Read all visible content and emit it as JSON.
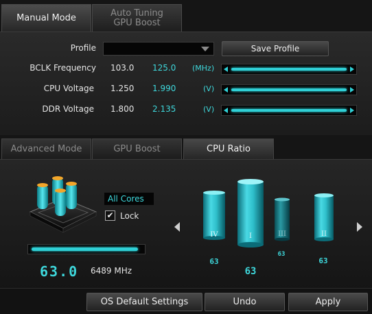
{
  "top_tabs": [
    {
      "label": "Manual Mode",
      "active": true
    },
    {
      "label_line1": "Auto Tuning",
      "label_line2": "GPU Boost",
      "active": false
    }
  ],
  "profile": {
    "label": "Profile",
    "value": "",
    "save_label": "Save Profile"
  },
  "params": [
    {
      "label": "BCLK Frequency",
      "default": "103.0",
      "current": "125.0",
      "unit": "(MHz)"
    },
    {
      "label": "CPU Voltage",
      "default": "1.250",
      "current": "1.990",
      "unit": "(V)"
    },
    {
      "label": "DDR Voltage",
      "default": "1.800",
      "current": "2.135",
      "unit": "(V)"
    }
  ],
  "sub_tabs": [
    {
      "label": "Advanced Mode",
      "active": false
    },
    {
      "label": "GPU Boost",
      "active": false
    },
    {
      "label": "CPU Ratio",
      "active": true
    }
  ],
  "cpu_ratio": {
    "cores_select": "All Cores",
    "lock_label": "Lock",
    "lock_checked": true,
    "ratio_display": "63.0",
    "frequency": "6489 MHz",
    "ratio_fill_fraction": 0.97
  },
  "cores": [
    {
      "numeral": "IV",
      "value": "63"
    },
    {
      "numeral": "I",
      "value": "63"
    },
    {
      "numeral": "III",
      "value": "63"
    },
    {
      "numeral": "II",
      "value": "63"
    }
  ],
  "footer": {
    "default_label": "OS Default Settings",
    "undo_label": "Undo",
    "apply_label": "Apply"
  },
  "colors": {
    "accent": "#3ed8dc",
    "background": "#151515"
  }
}
